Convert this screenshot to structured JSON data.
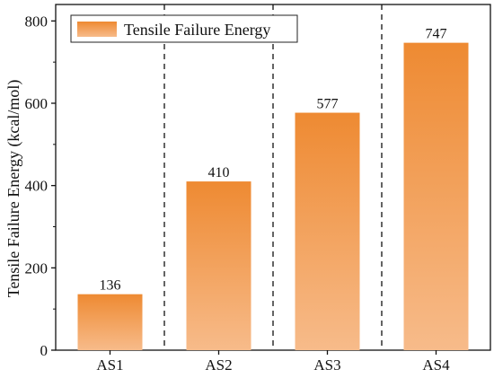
{
  "chart_data": {
    "type": "bar",
    "categories": [
      "AS1",
      "AS2",
      "AS3",
      "AS4"
    ],
    "values": [
      136,
      410,
      577,
      747
    ],
    "ylabel": "Tensile Failure Energy (kcal/mol)",
    "xlabel": "",
    "ylim": [
      0,
      840
    ],
    "yticks": [
      0,
      200,
      400,
      600,
      800
    ],
    "legend": {
      "position": "top-left",
      "entries": [
        "Tensile Failure Energy"
      ]
    },
    "separators": "dashed vertical lines between categories",
    "grid": false
  },
  "colors": {
    "bar_top": "#ee8a32",
    "bar_bottom": "#f7bb8a",
    "axis": "#111111"
  }
}
